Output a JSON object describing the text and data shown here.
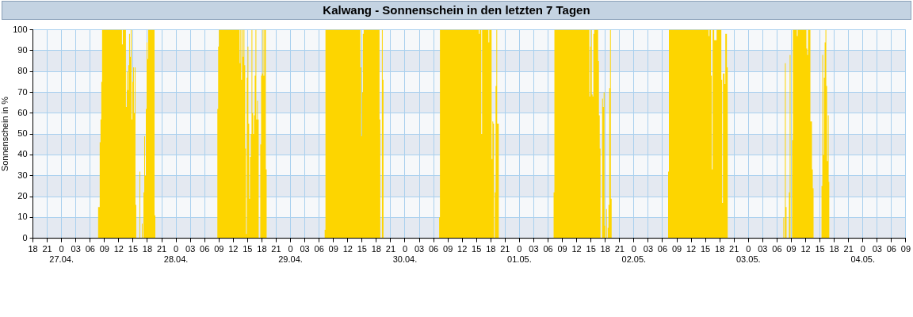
{
  "chart_data": {
    "type": "area",
    "title": "Kalwang - Sonnenschein in den letzten 7 Tagen",
    "ylabel": "Sonnenschein in %",
    "color": "#fdd500",
    "grid": true,
    "legend": false,
    "x": [
      "--04-26T18:00",
      "--04-27T07:40",
      "--04-27T08:00",
      "--04-27T08:10",
      "--04-27T08:20",
      "--04-27T08:30",
      "--04-27T12:40",
      "--04-27T12:50",
      "--04-27T13:30",
      "--04-27T13:40",
      "--04-27T13:50",
      "--04-27T14:00",
      "--04-27T14:10",
      "--04-27T14:20",
      "--04-27T14:30",
      "--04-27T14:40",
      "--04-27T14:50",
      "--04-27T15:00",
      "--04-27T15:10",
      "--04-27T15:20",
      "--04-27T15:30",
      "--04-27T15:40",
      "--04-27T16:20",
      "--04-27T16:30",
      "--04-27T16:50",
      "--04-27T17:00",
      "--04-27T17:10",
      "--04-27T17:20",
      "--04-27T17:30",
      "--04-27T17:40",
      "--04-27T17:50",
      "--04-27T18:00",
      "--04-27T18:10",
      "--04-27T19:30",
      "--04-27T19:40",
      "--04-28T08:40",
      "--04-28T08:50",
      "--04-28T09:00",
      "--04-28T13:20",
      "--04-28T13:30",
      "--04-28T13:40",
      "--04-28T13:50",
      "--04-28T14:00",
      "--04-28T14:10",
      "--04-28T14:20",
      "--04-28T14:30",
      "--04-28T14:40",
      "--04-28T14:50",
      "--04-28T15:00",
      "--04-28T15:10",
      "--04-28T15:20",
      "--04-28T15:30",
      "--04-28T15:40",
      "--04-28T15:50",
      "--04-28T16:00",
      "--04-28T16:10",
      "--04-28T16:20",
      "--04-28T16:30",
      "--04-28T16:40",
      "--04-28T16:50",
      "--04-28T17:00",
      "--04-28T17:10",
      "--04-28T17:20",
      "--04-28T17:40",
      "--04-28T17:50",
      "--04-28T18:00",
      "--04-28T18:10",
      "--04-28T18:20",
      "--04-28T18:30",
      "--04-28T18:50",
      "--04-28T19:00",
      "--04-29T07:10",
      "--04-29T07:20",
      "--04-29T14:40",
      "--04-29T14:50",
      "--04-29T15:00",
      "--04-29T15:10",
      "--04-29T15:20",
      "--04-29T18:40",
      "--04-29T18:50",
      "--04-29T19:10",
      "--04-29T19:20",
      "--04-29T19:30",
      "--04-30T07:10",
      "--04-30T07:20",
      "--04-30T15:30",
      "--04-30T15:40",
      "--04-30T16:00",
      "--04-30T16:10",
      "--04-30T17:30",
      "--04-30T17:40",
      "--04-30T18:10",
      "--04-30T18:20",
      "--04-30T18:30",
      "--04-30T18:40",
      "--04-30T18:50",
      "--04-30T19:00",
      "--04-30T19:10",
      "--04-30T19:20",
      "--04-30T19:40",
      "--05-01T07:10",
      "--05-01T07:20",
      "--05-01T14:40",
      "--05-01T14:50",
      "--05-01T15:00",
      "--05-01T15:10",
      "--05-01T15:20",
      "--05-01T15:30",
      "--05-01T15:40",
      "--05-01T16:30",
      "--05-01T16:40",
      "--05-01T16:50",
      "--05-01T17:00",
      "--05-01T17:20",
      "--05-01T17:30",
      "--05-01T17:40",
      "--05-01T17:50",
      "--05-01T18:00",
      "--05-01T18:10",
      "--05-01T18:20",
      "--05-01T18:30",
      "--05-01T18:40",
      "--05-01T18:50",
      "--05-01T19:00",
      "--05-01T19:10",
      "--05-01T19:20",
      "--05-02T07:10",
      "--05-02T07:20",
      "--05-02T15:40",
      "--05-02T15:50",
      "--05-02T16:10",
      "--05-02T16:20",
      "--05-02T16:30",
      "--05-02T16:50",
      "--05-02T17:20",
      "--05-02T18:20",
      "--05-02T18:30",
      "--05-02T18:40",
      "--05-02T19:00",
      "--05-02T19:10",
      "--05-02T19:30",
      "--05-02T19:40",
      "--05-03T07:20",
      "--05-03T07:30",
      "--05-03T07:40",
      "--05-03T07:50",
      "--05-03T08:00",
      "--05-03T08:30",
      "--05-03T08:40",
      "--05-03T08:50",
      "--05-03T09:10",
      "--05-03T09:20",
      "--05-03T10:10",
      "--05-03T10:20",
      "--05-03T12:10",
      "--05-03T12:20",
      "--05-03T12:30",
      "--05-03T13:00",
      "--05-03T13:10",
      "--05-03T13:20",
      "--05-03T13:30",
      "--05-03T13:40",
      "--05-03T15:20",
      "--05-03T15:30",
      "--05-03T15:40",
      "--05-03T15:50",
      "--05-03T16:00",
      "--05-03T16:10",
      "--05-03T16:20",
      "--05-03T16:30",
      "--05-03T16:40",
      "--05-03T16:50",
      "--05-03T17:00"
    ],
    "values": [
      0,
      15,
      46,
      57,
      75,
      100,
      93,
      100,
      63,
      80,
      71,
      83,
      98,
      87,
      100,
      57,
      75,
      82,
      60,
      82,
      16,
      0,
      32,
      0,
      7,
      0,
      22,
      49,
      30,
      62,
      94,
      86,
      100,
      11,
      0,
      62,
      92,
      100,
      84,
      100,
      76,
      100,
      87,
      100,
      83,
      43,
      2,
      77,
      92,
      55,
      19,
      39,
      50,
      100,
      60,
      50,
      59,
      78,
      100,
      57,
      66,
      57,
      0,
      45,
      78,
      79,
      100,
      78,
      100,
      33,
      0,
      4,
      100,
      82,
      49,
      70,
      98,
      100,
      57,
      0,
      100,
      76,
      0,
      10,
      100,
      98,
      100,
      50,
      100,
      94,
      100,
      38,
      56,
      55,
      0,
      22,
      73,
      100,
      55,
      0,
      22,
      100,
      68,
      92,
      100,
      69,
      68,
      98,
      100,
      85,
      59,
      43,
      0,
      67,
      63,
      70,
      6,
      0,
      14,
      0,
      5,
      16,
      72,
      100,
      19,
      0,
      32,
      100,
      97,
      100,
      78,
      33,
      100,
      95,
      100,
      76,
      17,
      79,
      74,
      98,
      82,
      0,
      10,
      0,
      84,
      15,
      0,
      22,
      88,
      0,
      47,
      100,
      97,
      100,
      91,
      88,
      100,
      56,
      56,
      33,
      24,
      0,
      25,
      88,
      40,
      77,
      94,
      100,
      73,
      37,
      59,
      27,
      0
    ],
    "xlim": [
      "--04-26T18:00",
      "--05-04T09:00"
    ],
    "xticks": [
      {
        "value": "--04-26T18:00",
        "label": "18"
      },
      {
        "value": "--04-26T21:00",
        "label": "21"
      },
      {
        "value": "--04-27T00:00",
        "label": "0\n27.04."
      },
      {
        "value": "--04-27T03:00",
        "label": "03"
      },
      {
        "value": "--04-27T06:00",
        "label": "06"
      },
      {
        "value": "--04-27T09:00",
        "label": "09"
      },
      {
        "value": "--04-27T12:00",
        "label": "12"
      },
      {
        "value": "--04-27T15:00",
        "label": "15"
      },
      {
        "value": "--04-27T18:00",
        "label": "18"
      },
      {
        "value": "--04-27T21:00",
        "label": "21"
      },
      {
        "value": "--04-28T00:00",
        "label": "0\n28.04."
      },
      {
        "value": "--04-28T03:00",
        "label": "03"
      },
      {
        "value": "--04-28T06:00",
        "label": "06"
      },
      {
        "value": "--04-28T09:00",
        "label": "09"
      },
      {
        "value": "--04-28T12:00",
        "label": "12"
      },
      {
        "value": "--04-28T15:00",
        "label": "15"
      },
      {
        "value": "--04-28T18:00",
        "label": "18"
      },
      {
        "value": "--04-28T21:00",
        "label": "21"
      },
      {
        "value": "--04-29T00:00",
        "label": "0\n29.04."
      },
      {
        "value": "--04-29T03:00",
        "label": "03"
      },
      {
        "value": "--04-29T06:00",
        "label": "06"
      },
      {
        "value": "--04-29T09:00",
        "label": "09"
      },
      {
        "value": "--04-29T12:00",
        "label": "12"
      },
      {
        "value": "--04-29T15:00",
        "label": "15"
      },
      {
        "value": "--04-29T18:00",
        "label": "18"
      },
      {
        "value": "--04-29T21:00",
        "label": "21"
      },
      {
        "value": "--04-30T00:00",
        "label": "0\n30.04."
      },
      {
        "value": "--04-30T03:00",
        "label": "03"
      },
      {
        "value": "--04-30T06:00",
        "label": "06"
      },
      {
        "value": "--04-30T09:00",
        "label": "09"
      },
      {
        "value": "--04-30T12:00",
        "label": "12"
      },
      {
        "value": "--04-30T15:00",
        "label": "15"
      },
      {
        "value": "--04-30T18:00",
        "label": "18"
      },
      {
        "value": "--04-30T21:00",
        "label": "21"
      },
      {
        "value": "--05-01T00:00",
        "label": "0\n01.05."
      },
      {
        "value": "--05-01T03:00",
        "label": "03"
      },
      {
        "value": "--05-01T06:00",
        "label": "06"
      },
      {
        "value": "--05-01T09:00",
        "label": "09"
      },
      {
        "value": "--05-01T12:00",
        "label": "12"
      },
      {
        "value": "--05-01T15:00",
        "label": "15"
      },
      {
        "value": "--05-01T18:00",
        "label": "18"
      },
      {
        "value": "--05-01T21:00",
        "label": "21"
      },
      {
        "value": "--05-02T00:00",
        "label": "0\n02.05."
      },
      {
        "value": "--05-02T03:00",
        "label": "03"
      },
      {
        "value": "--05-02T06:00",
        "label": "06"
      },
      {
        "value": "--05-02T09:00",
        "label": "09"
      },
      {
        "value": "--05-02T12:00",
        "label": "12"
      },
      {
        "value": "--05-02T15:00",
        "label": "15"
      },
      {
        "value": "--05-02T18:00",
        "label": "18"
      },
      {
        "value": "--05-02T21:00",
        "label": "21"
      },
      {
        "value": "--05-03T00:00",
        "label": "0\n03.05."
      },
      {
        "value": "--05-03T03:00",
        "label": "03"
      },
      {
        "value": "--05-03T06:00",
        "label": "06"
      },
      {
        "value": "--05-03T09:00",
        "label": "09"
      },
      {
        "value": "--05-03T12:00",
        "label": "12"
      },
      {
        "value": "--05-03T15:00",
        "label": "15"
      },
      {
        "value": "--05-03T18:00",
        "label": "18"
      },
      {
        "value": "--05-03T21:00",
        "label": "21"
      },
      {
        "value": "--05-04T00:00",
        "label": "0\n04.05."
      },
      {
        "value": "--05-04T03:00",
        "label": "03"
      },
      {
        "value": "--05-04T06:00",
        "label": "06"
      },
      {
        "value": "--05-04T09:00",
        "label": "09"
      }
    ],
    "ylim": [
      0,
      100
    ],
    "yticks": [
      0,
      10,
      20,
      30,
      40,
      50,
      60,
      70,
      80,
      90,
      100
    ]
  }
}
